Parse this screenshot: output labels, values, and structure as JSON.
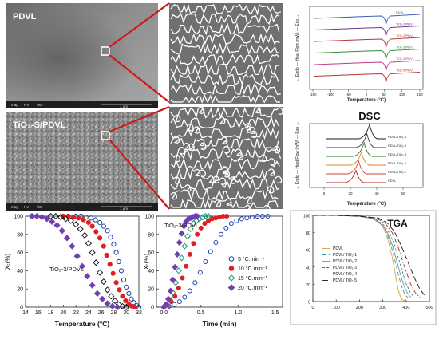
{
  "sem": {
    "top_label": "PDVL",
    "bottom_label": "TiO₂-S/PDVL",
    "info_bar": {
      "mag": "mag",
      "hv": "HV",
      "wd": "WD",
      "scale_top": "1 μm",
      "scale_bottom": "1 μm"
    }
  },
  "dsc_heating": {
    "xlabel": "Temperature (°C)",
    "ylabel": "← Endo — Heat Flow (mW) — Exo →",
    "xticks": [
      "-150",
      "-100",
      "-50",
      "0",
      "50",
      "100",
      "150"
    ],
    "curves": [
      {
        "name": "PDVL",
        "color": "#3a5fb0"
      },
      {
        "name": "TiO₂-1/PDVL",
        "color": "#6a3a8a"
      },
      {
        "name": "TiO₂-2/PDVL",
        "color": "#b23a3a"
      },
      {
        "name": "TiO₂-3/PDVL",
        "color": "#3a8a3a"
      },
      {
        "name": "TiO₂-4/PDVL",
        "color": "#c23a8a"
      },
      {
        "name": "TiO₂-5/PDVL",
        "color": "#c03030"
      }
    ]
  },
  "dsc_cooling": {
    "title": "DSC",
    "xlabel": "Temperature (°C)",
    "ylabel": "← Endo — Heat Flow (mW) — Exo →",
    "xticks": [
      "0",
      "20",
      "40",
      "60"
    ],
    "curves": [
      {
        "name": "PDVL/TiO₂-5",
        "color": "#1a1a1a"
      },
      {
        "name": "PDVL/TiO₂-4",
        "color": "#3a3a3a"
      },
      {
        "name": "PDVL/TiO₂-3",
        "color": "#2a7a2a"
      },
      {
        "name": "PDVL/TiO₂-2",
        "color": "#d08a20"
      },
      {
        "name": "PDVL/TiO₂-1",
        "color": "#d04030"
      },
      {
        "name": "PDVL",
        "color": "#c02020"
      }
    ]
  },
  "chart_data": [
    {
      "type": "scatter",
      "annotation": "TiO₂-3/PDVL",
      "xlabel": "Temperature (°C)",
      "ylabel": "Xₜ(%)",
      "xlim": [
        14,
        32
      ],
      "ylim": [
        0,
        100
      ],
      "xticks": [
        14,
        16,
        18,
        20,
        22,
        24,
        26,
        28,
        30,
        32
      ],
      "yticks": [
        0,
        20,
        40,
        60,
        80,
        100
      ],
      "series": [
        {
          "marker": "circle-open",
          "color": "#1f3fb0",
          "x": [
            22.0,
            22.8,
            23.6,
            24.4,
            25.1,
            25.8,
            26.4,
            27.0,
            27.5,
            28.0,
            28.4,
            28.8,
            29.2,
            29.6,
            30.0,
            30.4,
            30.8,
            31.2,
            31.6,
            32.0
          ],
          "y": [
            100,
            100,
            99,
            98,
            96,
            93,
            89,
            84,
            77,
            69,
            60,
            50,
            40,
            30,
            22,
            15,
            9,
            5,
            2,
            0
          ]
        },
        {
          "marker": "circle-filled",
          "color": "#e02020",
          "x": [
            20.0,
            20.8,
            21.6,
            22.4,
            23.2,
            24.0,
            24.6,
            25.2,
            25.8,
            26.4,
            26.9,
            27.4,
            27.9,
            28.4,
            28.9,
            29.4,
            29.9,
            30.4,
            30.9,
            31.4
          ],
          "y": [
            100,
            100,
            99,
            98,
            96,
            93,
            89,
            83,
            76,
            67,
            57,
            47,
            37,
            27,
            19,
            12,
            7,
            3,
            1,
            0
          ]
        },
        {
          "marker": "diamond-open",
          "color": "#1a1a1a",
          "x": [
            18.0,
            18.8,
            19.6,
            20.4,
            21.2,
            22.0,
            22.7,
            23.4,
            24.0,
            24.6,
            25.2,
            25.8,
            26.4,
            27.0,
            27.6,
            28.2,
            28.8,
            29.4,
            30.0
          ],
          "y": [
            100,
            100,
            99,
            97,
            95,
            91,
            86,
            79,
            70,
            60,
            49,
            38,
            28,
            19,
            12,
            7,
            3,
            1,
            0
          ]
        },
        {
          "marker": "diamond-filled",
          "color": "#7040b0",
          "x": [
            15.0,
            15.8,
            16.6,
            17.4,
            18.2,
            19.0,
            19.8,
            20.6,
            21.4,
            22.2,
            23.0,
            23.8,
            24.6,
            25.4,
            26.2,
            27.0,
            27.8,
            28.6
          ],
          "y": [
            100,
            100,
            99,
            97,
            94,
            90,
            84,
            76,
            67,
            56,
            45,
            34,
            24,
            15,
            9,
            4,
            1,
            0
          ]
        }
      ]
    },
    {
      "type": "scatter",
      "annotation": "TiO₂-3/PDVL",
      "xlabel": "Time (min)",
      "ylabel": "Xₜ(%)",
      "xlim": [
        -0.1,
        1.6
      ],
      "ylim": [
        0,
        100
      ],
      "xticks": [
        0.0,
        0.5,
        1.0,
        1.5
      ],
      "yticks": [
        0,
        20,
        40,
        60,
        80,
        100
      ],
      "series": [
        {
          "name": "5 °C.min⁻¹",
          "marker": "circle-open",
          "color": "#1f3fb0",
          "x": [
            0.0,
            0.07,
            0.14,
            0.21,
            0.28,
            0.35,
            0.42,
            0.49,
            0.56,
            0.63,
            0.7,
            0.77,
            0.84,
            0.91,
            0.98,
            1.05,
            1.12,
            1.19,
            1.26,
            1.33,
            1.4
          ],
          "y": [
            0,
            1,
            3,
            6,
            11,
            18,
            27,
            38,
            50,
            61,
            71,
            80,
            87,
            92,
            95,
            97,
            98,
            99,
            100,
            100,
            100
          ]
        },
        {
          "name": "10 °C.min⁻¹",
          "marker": "circle-filled",
          "color": "#e02020",
          "x": [
            0.0,
            0.05,
            0.1,
            0.15,
            0.2,
            0.25,
            0.3,
            0.35,
            0.4,
            0.45,
            0.5,
            0.55,
            0.6,
            0.65,
            0.7,
            0.75,
            0.8,
            0.85
          ],
          "y": [
            0,
            2,
            6,
            12,
            21,
            32,
            45,
            58,
            70,
            80,
            87,
            92,
            95,
            97,
            98,
            99,
            100,
            100
          ]
        },
        {
          "name": "15 °C.min⁻¹",
          "marker": "diamond-open",
          "color": "#1a9a7a",
          "x": [
            0.0,
            0.04,
            0.08,
            0.12,
            0.16,
            0.2,
            0.24,
            0.28,
            0.32,
            0.36,
            0.4,
            0.44,
            0.48,
            0.52,
            0.56,
            0.6
          ],
          "y": [
            0,
            3,
            8,
            16,
            27,
            40,
            54,
            67,
            78,
            86,
            92,
            95,
            97,
            99,
            100,
            100
          ]
        },
        {
          "name": "20 °C.min⁻¹",
          "marker": "diamond-filled",
          "color": "#7040b0",
          "x": [
            0.0,
            0.03,
            0.06,
            0.09,
            0.12,
            0.15,
            0.18,
            0.21,
            0.24,
            0.27,
            0.3,
            0.33,
            0.36,
            0.39,
            0.42,
            0.45
          ],
          "y": [
            0,
            3,
            9,
            18,
            30,
            44,
            58,
            71,
            81,
            89,
            94,
            97,
            98,
            99,
            100,
            100
          ]
        }
      ]
    },
    {
      "type": "line",
      "title": "TGA",
      "xlim": [
        0,
        500
      ],
      "ylim": [
        0,
        100
      ],
      "xticks": [
        0,
        100,
        200,
        300,
        400,
        500
      ],
      "yticks": [
        0,
        20,
        40,
        60,
        80,
        100
      ],
      "series": [
        {
          "name": "PDVL",
          "color": "#e0a040",
          "dash": "",
          "x": [
            0,
            100,
            200,
            250,
            280,
            300,
            320,
            340,
            355,
            365,
            375,
            385,
            395
          ],
          "y": [
            100,
            100,
            99,
            97,
            93,
            87,
            74,
            52,
            30,
            15,
            6,
            2,
            1
          ]
        },
        {
          "name": "PDVL/ TiO₂-1",
          "color": "#2aa0a0",
          "dash": "5,3",
          "x": [
            0,
            100,
            200,
            250,
            290,
            310,
            330,
            350,
            365,
            380,
            395,
            410
          ],
          "y": [
            100,
            100,
            99,
            97,
            91,
            84,
            70,
            50,
            33,
            18,
            8,
            4
          ]
        },
        {
          "name": "PDVL/ TiO₂-2",
          "color": "#8a8a8a",
          "dash": "",
          "x": [
            0,
            100,
            200,
            260,
            300,
            320,
            340,
            360,
            375,
            390,
            405,
            420
          ],
          "y": [
            100,
            100,
            99,
            96,
            88,
            80,
            66,
            47,
            32,
            19,
            10,
            5
          ]
        },
        {
          "name": "PDVL/ TiO₂-3",
          "color": "#1a8a9a",
          "dash": "3,2",
          "x": [
            0,
            100,
            200,
            260,
            300,
            330,
            350,
            370,
            385,
            400,
            415,
            430
          ],
          "y": [
            100,
            100,
            99,
            97,
            90,
            79,
            66,
            48,
            34,
            21,
            12,
            6
          ]
        },
        {
          "name": "PDVL/ TiO₂-4",
          "color": "#c02020",
          "dash": "6,2,1.5,2",
          "x": [
            0,
            100,
            200,
            270,
            310,
            340,
            365,
            385,
            400,
            420,
            440,
            460
          ],
          "y": [
            100,
            100,
            99,
            97,
            91,
            80,
            64,
            47,
            35,
            20,
            10,
            5
          ]
        },
        {
          "name": "PDVL/ TiO₂-5",
          "color": "#1a1a1a",
          "dash": "7,3",
          "x": [
            0,
            100,
            200,
            280,
            320,
            350,
            380,
            400,
            420,
            440,
            460,
            480
          ],
          "y": [
            100,
            100,
            99,
            97,
            91,
            81,
            64,
            51,
            38,
            25,
            14,
            7
          ]
        }
      ]
    }
  ]
}
